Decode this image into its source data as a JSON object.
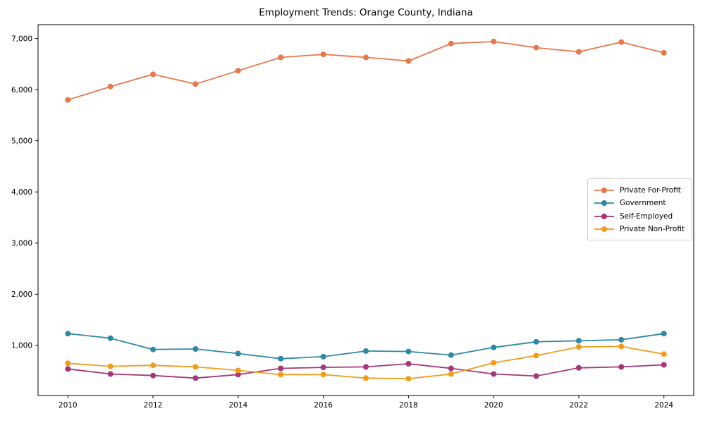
{
  "window": {
    "background": "#ffffff"
  },
  "chart_data": {
    "type": "line",
    "title": "Employment Trends: Orange County, Indiana",
    "xlabel": "",
    "ylabel": "",
    "grid": false,
    "x": [
      2010,
      2011,
      2012,
      2013,
      2014,
      2015,
      2016,
      2017,
      2018,
      2019,
      2020,
      2021,
      2022,
      2023,
      2024
    ],
    "series": [
      {
        "name": "Private For-Profit",
        "color": "#e8774b",
        "values": [
          5800,
          6060,
          6300,
          6110,
          6370,
          6630,
          6690,
          6630,
          6560,
          6900,
          6940,
          6820,
          6740,
          6930,
          6720
        ]
      },
      {
        "name": "Government",
        "color": "#2e87a5",
        "values": [
          1230,
          1140,
          920,
          930,
          840,
          740,
          780,
          890,
          880,
          810,
          960,
          1070,
          1090,
          1110,
          1230
        ]
      },
      {
        "name": "Self-Employed",
        "color": "#a53778",
        "values": [
          540,
          440,
          410,
          360,
          430,
          550,
          570,
          580,
          640,
          550,
          440,
          400,
          560,
          580,
          620
        ]
      },
      {
        "name": "Private Non-Profit",
        "color": "#f39c1b",
        "values": [
          650,
          590,
          610,
          580,
          510,
          430,
          430,
          360,
          350,
          440,
          660,
          800,
          970,
          980,
          830
        ]
      }
    ],
    "xticks": {
      "values": [
        2010,
        2012,
        2014,
        2016,
        2018,
        2020,
        2022,
        2024
      ],
      "labels": [
        "2010",
        "2012",
        "2014",
        "2016",
        "2018",
        "2020",
        "2022",
        "2024"
      ]
    },
    "yticks": {
      "values": [
        1000,
        2000,
        3000,
        4000,
        5000,
        6000,
        7000
      ],
      "labels": [
        "1,000",
        "2,000",
        "3,000",
        "4,000",
        "5,000",
        "6,000",
        "7,000"
      ]
    },
    "xlim": [
      2009.3,
      2024.7
    ],
    "ylim": [
      20,
      7270
    ],
    "axes_color": "#000000",
    "legend": {
      "position": "center right",
      "border_color": "#cccccc",
      "background": "#ffffff"
    }
  }
}
